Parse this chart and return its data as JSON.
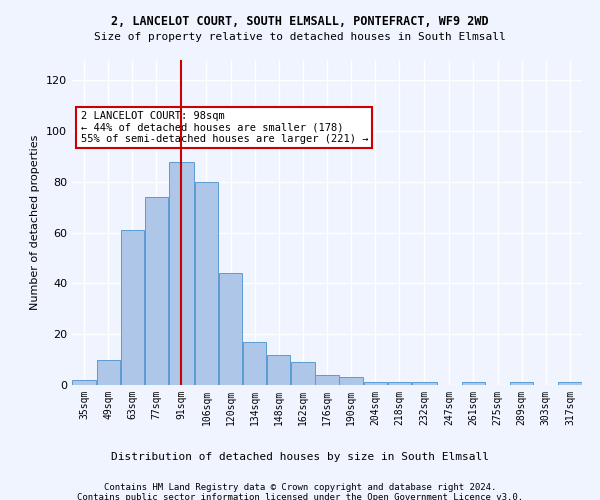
{
  "title1": "2, LANCELOT COURT, SOUTH ELMSALL, PONTEFRACT, WF9 2WD",
  "title2": "Size of property relative to detached houses in South Elmsall",
  "xlabel": "Distribution of detached houses by size in South Elmsall",
  "ylabel": "Number of detached properties",
  "footer1": "Contains HM Land Registry data © Crown copyright and database right 2024.",
  "footer2": "Contains public sector information licensed under the Open Government Licence v3.0.",
  "property_size": 98,
  "property_label": "2 LANCELOT COURT: 98sqm",
  "annotation_line1": "← 44% of detached houses are smaller (178)",
  "annotation_line2": "55% of semi-detached houses are larger (221) →",
  "bin_labels": [
    "35sqm",
    "49sqm",
    "63sqm",
    "77sqm",
    "91sqm",
    "106sqm",
    "120sqm",
    "134sqm",
    "148sqm",
    "162sqm",
    "176sqm",
    "190sqm",
    "204sqm",
    "218sqm",
    "232sqm",
    "247sqm",
    "261sqm",
    "275sqm",
    "289sqm",
    "303sqm",
    "317sqm"
  ],
  "bin_edges": [
    35,
    49,
    63,
    77,
    91,
    106,
    120,
    134,
    148,
    162,
    176,
    190,
    204,
    218,
    232,
    247,
    261,
    275,
    289,
    303,
    317
  ],
  "bar_values": [
    2,
    10,
    61,
    74,
    88,
    80,
    44,
    17,
    12,
    9,
    4,
    3,
    1,
    1,
    1,
    0,
    1,
    0,
    1,
    0,
    1
  ],
  "bar_color": "#aec6e8",
  "bar_edge_color": "#5a9bd4",
  "vline_x": 98,
  "vline_color": "#cc0000",
  "annotation_box_color": "#cc0000",
  "background_color": "#f0f4ff",
  "grid_color": "#ffffff",
  "ylim": [
    0,
    128
  ],
  "yticks": [
    0,
    20,
    40,
    60,
    80,
    100,
    120
  ]
}
